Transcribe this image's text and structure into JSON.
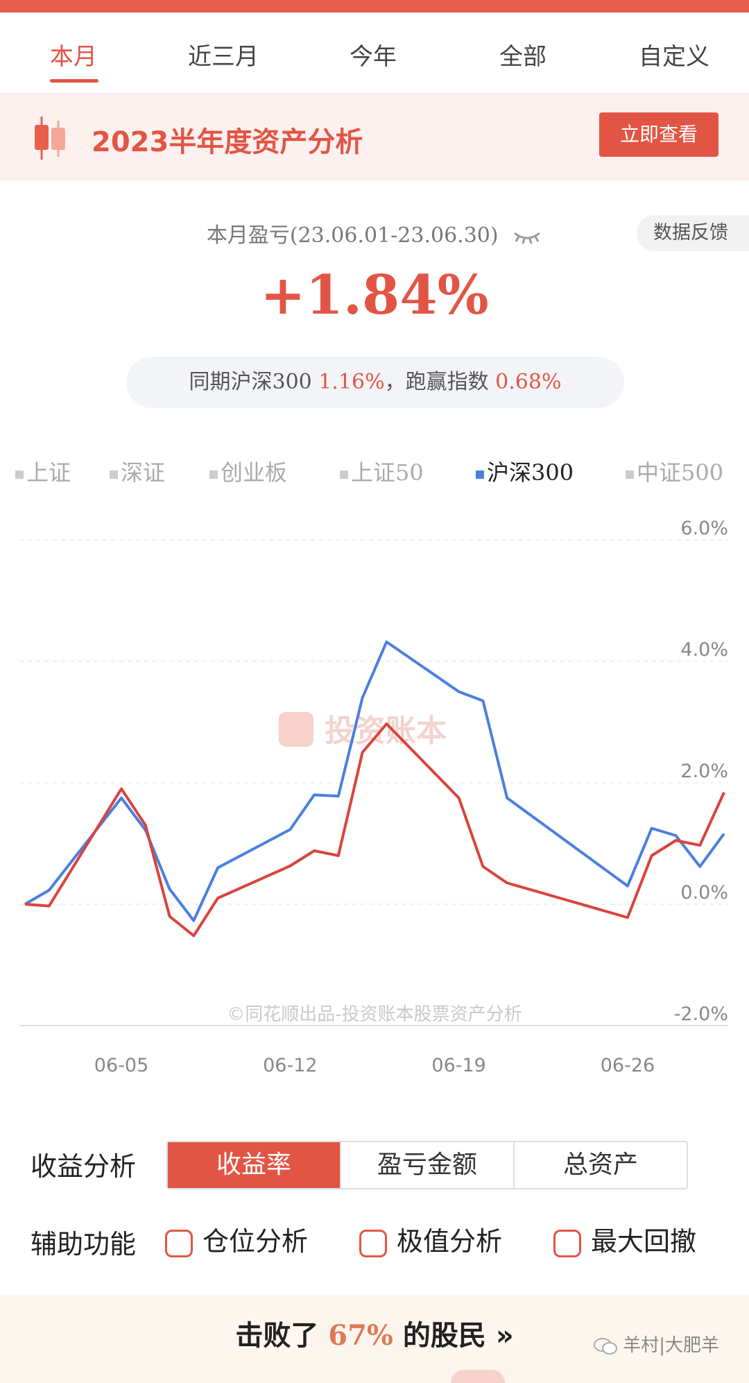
{
  "colors": {
    "accent": "#e25545",
    "series_portfolio": "#d9443c",
    "series_index": "#4a7fe0"
  },
  "tabs": [
    "本月",
    "近三月",
    "今年",
    "全部",
    "自定义"
  ],
  "banner": {
    "title": "2023半年度资产分析",
    "button": "立即查看",
    "icon": "candlestick-icon"
  },
  "summary": {
    "period_label": "本月盈亏(23.06.01-23.06.30)",
    "feedback": "数据反馈",
    "pnl": "+1.84%",
    "compare_prefix": "同期沪深300",
    "compare_value": "1.16%",
    "compare_mid": "，跑赢指数",
    "compare_diff": "0.68%"
  },
  "legend": [
    "上证",
    "深证",
    "创业板",
    "上证50",
    "沪深300",
    "中证500"
  ],
  "chart_watermark": "投资账本",
  "chart_credit": "©同花顺出品-投资账本股票资产分析",
  "chart_data": {
    "type": "line",
    "ylim": [
      -2.0,
      6.0
    ],
    "yticks": [
      "6.0%",
      "4.0%",
      "2.0%",
      "0.0%",
      "-2.0%"
    ],
    "ytick_values": [
      6,
      4,
      2,
      0,
      -2
    ],
    "xticks": [
      "06-05",
      "06-12",
      "06-19",
      "06-26"
    ],
    "x": [
      "06-01",
      "06-02",
      "06-05",
      "06-06",
      "06-07",
      "06-08",
      "06-09",
      "06-12",
      "06-13",
      "06-14",
      "06-15",
      "06-16",
      "06-19",
      "06-20",
      "06-21",
      "06-26",
      "06-27",
      "06-28",
      "06-29",
      "06-30"
    ],
    "series": [
      {
        "name": "沪深300",
        "values": [
          0.0,
          0.23,
          1.75,
          1.22,
          0.25,
          -0.27,
          0.6,
          1.23,
          1.8,
          1.78,
          3.4,
          4.32,
          3.5,
          3.35,
          1.75,
          0.3,
          1.25,
          1.13,
          0.62,
          1.16
        ]
      },
      {
        "values": [
          0.0,
          -0.03,
          1.9,
          1.3,
          -0.2,
          -0.52,
          0.1,
          0.63,
          0.88,
          0.8,
          2.5,
          2.97,
          1.75,
          0.62,
          0.35,
          -0.22,
          0.8,
          1.05,
          0.97,
          1.84
        ]
      }
    ]
  },
  "analysis": {
    "label": "收益分析",
    "options": [
      "收益率",
      "盈亏金额",
      "总资产"
    ],
    "selected": "收益率"
  },
  "aux": {
    "label": "辅助功能",
    "options": [
      "仓位分析",
      "极值分析",
      "最大回撤"
    ]
  },
  "beat": {
    "prefix": "击败了",
    "pct": "67%",
    "suffix": "的股民",
    "arrow": "»"
  },
  "watermark": "羊村|大肥羊"
}
